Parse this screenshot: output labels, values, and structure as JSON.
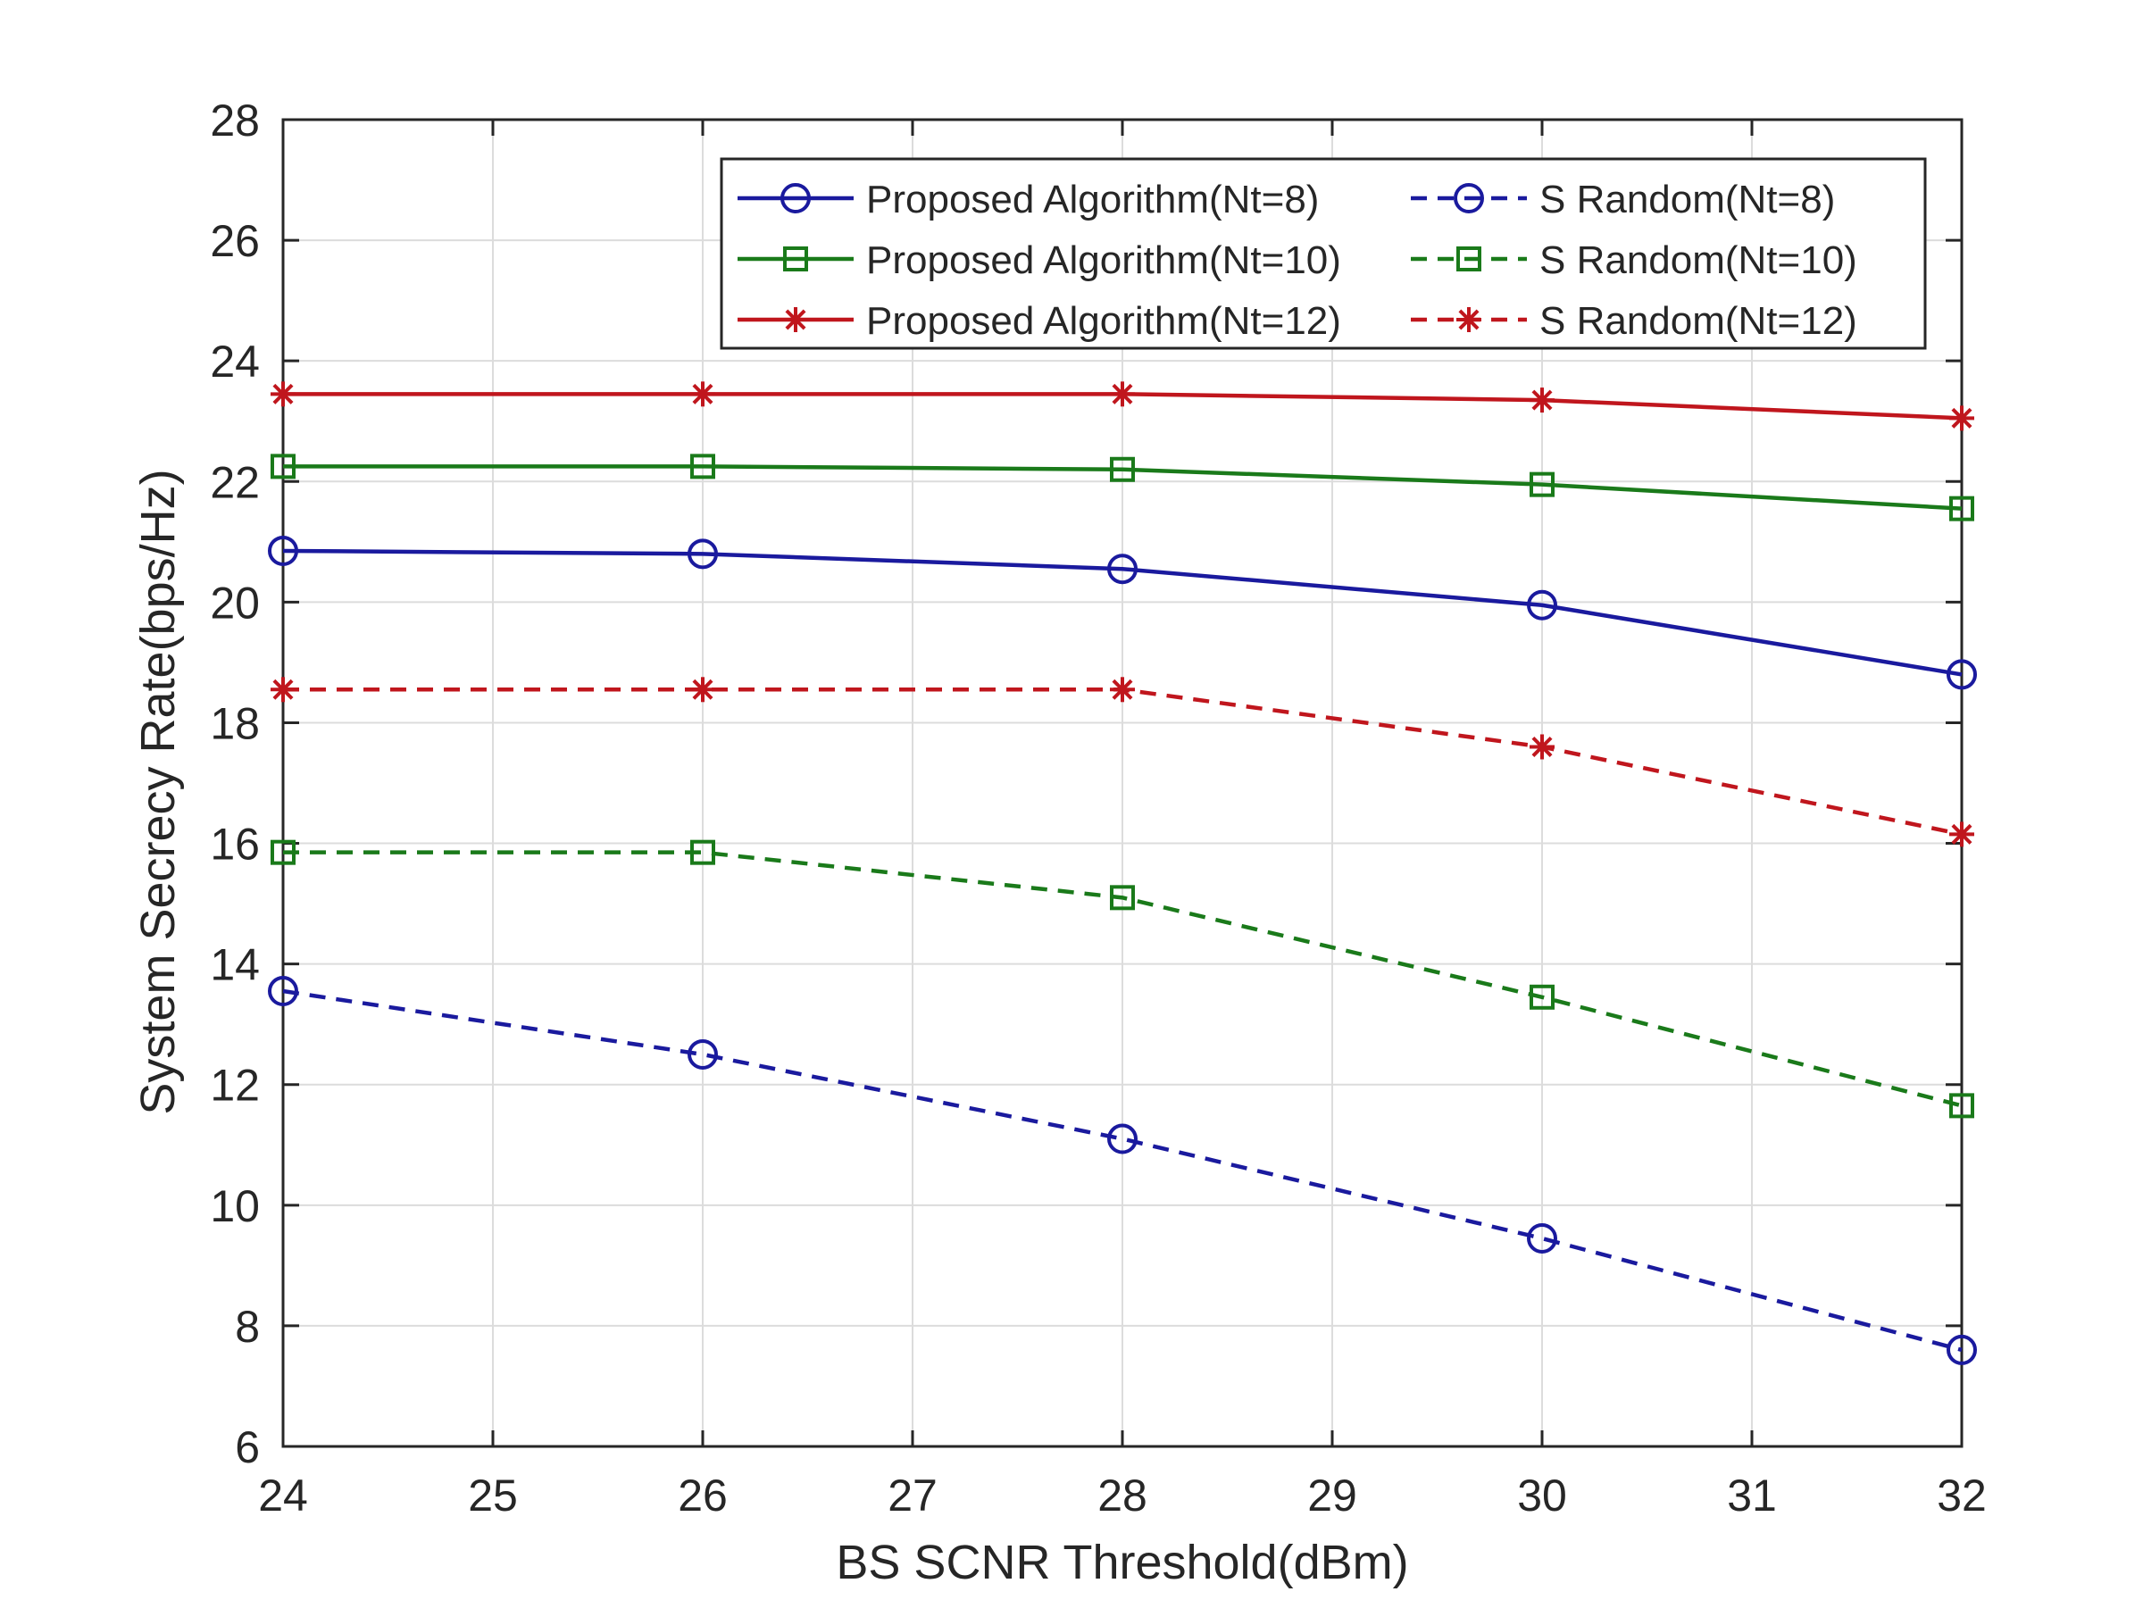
{
  "chart_data": {
    "type": "line",
    "xlabel": "BS SCNR Threshold(dBm)",
    "ylabel": "System Secrecy Rate(bps/Hz)",
    "xlim": [
      24,
      32
    ],
    "ylim": [
      6,
      28
    ],
    "xticks": [
      24,
      25,
      26,
      27,
      28,
      29,
      30,
      31,
      32
    ],
    "yticks": [
      6,
      8,
      10,
      12,
      14,
      16,
      18,
      20,
      22,
      24,
      26,
      28
    ],
    "grid": true,
    "legend_position": "top-right",
    "x": [
      24,
      26,
      28,
      30,
      32
    ],
    "series": [
      {
        "name": "Proposed Algorithm(Nt=8)",
        "values": [
          20.85,
          20.8,
          20.55,
          19.95,
          18.8
        ],
        "color": "#1a1a9e",
        "marker": "circle",
        "dash": "solid"
      },
      {
        "name": "Proposed Algorithm(Nt=10)",
        "values": [
          22.25,
          22.25,
          22.2,
          21.95,
          21.55
        ],
        "color": "#1a7a1a",
        "marker": "square",
        "dash": "solid"
      },
      {
        "name": "Proposed Algorithm(Nt=12)",
        "values": [
          23.45,
          23.45,
          23.45,
          23.35,
          23.05
        ],
        "color": "#c0161d",
        "marker": "asterisk",
        "dash": "solid"
      },
      {
        "name": "S Random(Nt=8)",
        "values": [
          13.55,
          12.5,
          11.1,
          9.45,
          7.6
        ],
        "color": "#1a1a9e",
        "marker": "circle",
        "dash": "dashed"
      },
      {
        "name": "S Random(Nt=10)",
        "values": [
          15.85,
          15.85,
          15.1,
          13.45,
          11.65
        ],
        "color": "#1a7a1a",
        "marker": "square",
        "dash": "dashed"
      },
      {
        "name": "S Random(Nt=12)",
        "values": [
          18.55,
          18.55,
          18.55,
          17.6,
          16.15
        ],
        "color": "#c0161d",
        "marker": "asterisk",
        "dash": "dashed"
      }
    ]
  }
}
